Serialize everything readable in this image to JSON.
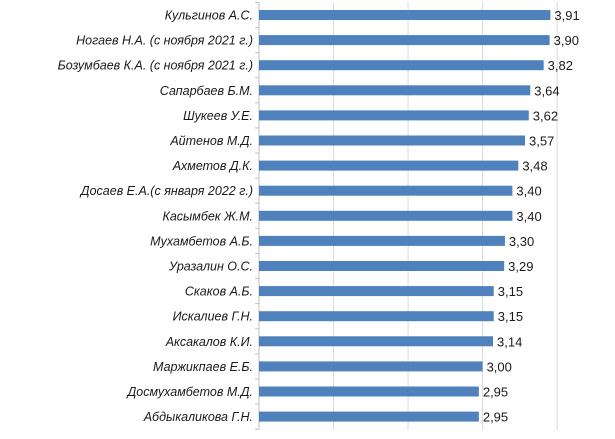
{
  "chart_data": {
    "type": "bar",
    "orientation": "horizontal",
    "title": "",
    "xlabel": "",
    "ylabel": "",
    "categories": [
      "Кульгинов А.С.",
      "Ногаев Н.А. (с ноября 2021 г.)",
      "Бозумбаев К.А. (с ноября 2021 г.)",
      "Сапарбаев Б.М.",
      "Шукеев У.Е.",
      "Айтенов М.Д.",
      "Ахметов Д.К.",
      "Досаев Е.А.(с января 2022 г.)",
      "Касымбек Ж.М.",
      "Мухамбетов А.Б.",
      "Уразалин О.С.",
      "Скаков А.Б.",
      "Искалиев Г.Н.",
      "Аксакалов К.И.",
      "Маржикпаев Е.Б.",
      "Досмухамбетов М.Д.",
      "Абдыкаликова Г.Н."
    ],
    "values": [
      3.91,
      3.9,
      3.82,
      3.64,
      3.62,
      3.57,
      3.48,
      3.4,
      3.4,
      3.3,
      3.29,
      3.15,
      3.15,
      3.14,
      3.0,
      2.95,
      2.95
    ],
    "value_labels": [
      "3,91",
      "3,90",
      "3,82",
      "3,64",
      "3,62",
      "3,57",
      "3,48",
      "3,40",
      "3,40",
      "3,30",
      "3,29",
      "3,15",
      "3,15",
      "3,14",
      "3,00",
      "2,95",
      "2,95"
    ],
    "xlim": [
      0,
      4.2
    ],
    "gridlines_x": [
      0,
      1,
      2,
      3,
      4
    ],
    "grid": true,
    "legend": "none",
    "bar_color": "#4f81bd",
    "grid_color": "#d9d9d9",
    "axis_color": "#bfbfbf"
  }
}
